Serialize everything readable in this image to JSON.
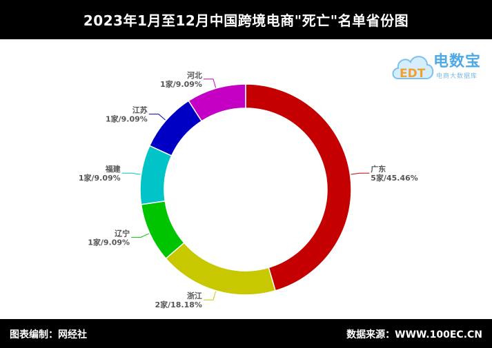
{
  "title": "2023年1月至12月中国跨境电商\"死亡\"名单省份图",
  "footer": {
    "left": "图表编制：网经社",
    "right": "数据来源：WWW.100EC.CN"
  },
  "logo": {
    "title": "电数宝",
    "subtitle": "电商大数据库",
    "mark": "EDT"
  },
  "chart_data": {
    "type": "pie",
    "donut": true,
    "start_angle_deg": 0,
    "direction": "clockwise",
    "categories": [
      "广东",
      "浙江",
      "辽宁",
      "福建",
      "江苏",
      "河北"
    ],
    "values": [
      5,
      2,
      1,
      1,
      1,
      1
    ],
    "value_labels": [
      "5家/45.46%",
      "2家/18.18%",
      "1家/9.09%",
      "1家/9.09%",
      "1家/9.09%",
      "1家/9.09%"
    ],
    "colors": [
      "#c40000",
      "#c8c800",
      "#00c400",
      "#00c4c8",
      "#0000c4",
      "#c400c4"
    ]
  }
}
